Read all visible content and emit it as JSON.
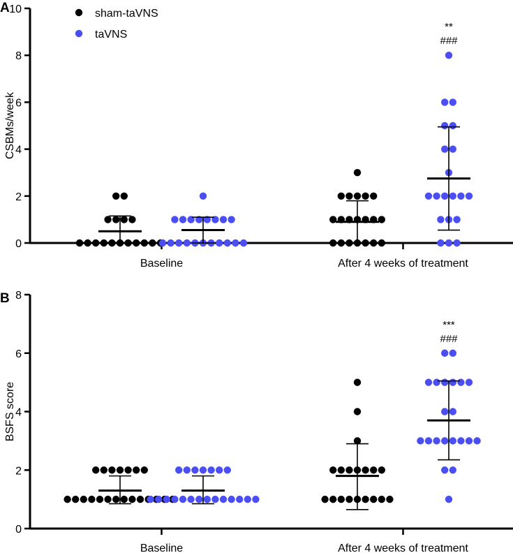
{
  "colors": {
    "sham": "#000000",
    "tavns": "#4b4ef2",
    "axis": "#000000"
  },
  "legend": [
    {
      "name": "sham-taVNS",
      "color": "#000000"
    },
    {
      "name": "taVNS",
      "color": "#4b4ef2"
    }
  ],
  "chart_data": [
    {
      "panel": "A",
      "type": "scatter",
      "ylabel": "CSBMs/week",
      "ylim": [
        0,
        10
      ],
      "yticks": [
        0,
        2,
        4,
        6,
        8,
        10
      ],
      "ytick_labels": [
        "0",
        "2",
        "4",
        "6",
        "8",
        "10"
      ],
      "categories": [
        "Baseline",
        "After 4 weeks of treatment"
      ],
      "series": [
        {
          "name": "sham-taVNS",
          "color": "#000000",
          "groups": [
            {
              "category": "Baseline",
              "mean": 0.5,
              "sd_low": 0.0,
              "sd_high": 1.15,
              "rows": [
                [
                  2,
                  2
                ],
                [
                  1,
                  4
                ],
                [
                  0,
                  11
                ]
              ]
            },
            {
              "category": "After 4 weeks of treatment",
              "mean": 0.9,
              "sd_low": 0.0,
              "sd_high": 1.8,
              "rows": [
                [
                  3,
                  1
                ],
                [
                  2,
                  5
                ],
                [
                  1,
                  7
                ],
                [
                  0,
                  7
                ]
              ]
            }
          ]
        },
        {
          "name": "taVNS",
          "color": "#4b4ef2",
          "groups": [
            {
              "category": "Baseline",
              "mean": 0.55,
              "sd_low": 0.0,
              "sd_high": 1.1,
              "rows": [
                [
                  2,
                  1
                ],
                [
                  1,
                  8
                ],
                [
                  0,
                  11
                ]
              ]
            },
            {
              "category": "After 4 weeks of treatment",
              "mean": 2.75,
              "sd_low": 0.55,
              "sd_high": 4.95,
              "rows": [
                [
                  8,
                  1
                ],
                [
                  6,
                  2
                ],
                [
                  5,
                  2
                ],
                [
                  4,
                  2
                ],
                [
                  3,
                  1
                ],
                [
                  2,
                  6
                ],
                [
                  1,
                  3
                ],
                [
                  0,
                  3
                ]
              ]
            }
          ]
        }
      ],
      "annotations": [
        {
          "category": "After 4 weeks of treatment",
          "series": "taVNS",
          "lines": [
            "**",
            "###"
          ]
        }
      ]
    },
    {
      "panel": "B",
      "type": "scatter",
      "ylabel": "BSFS score",
      "ylim": [
        0,
        8
      ],
      "yticks": [
        0,
        2,
        4,
        6,
        8
      ],
      "ytick_labels": [
        "0",
        "2",
        "4",
        "6",
        "8"
      ],
      "categories": [
        "Baseline",
        "After 4 weeks of treatment"
      ],
      "series": [
        {
          "name": "sham-taVNS",
          "color": "#000000",
          "groups": [
            {
              "category": "Baseline",
              "mean": 1.3,
              "sd_low": 0.85,
              "sd_high": 1.8,
              "rows": [
                [
                  2,
                  7
                ],
                [
                  1,
                  14
                ]
              ]
            },
            {
              "category": "After 4 weeks of treatment",
              "mean": 1.8,
              "sd_low": 0.65,
              "sd_high": 2.9,
              "rows": [
                [
                  5,
                  1
                ],
                [
                  4,
                  1
                ],
                [
                  3,
                  1
                ],
                [
                  2,
                  7
                ],
                [
                  1,
                  9
                ]
              ]
            }
          ]
        },
        {
          "name": "taVNS",
          "color": "#4b4ef2",
          "groups": [
            {
              "category": "Baseline",
              "mean": 1.3,
              "sd_low": 0.85,
              "sd_high": 1.8,
              "rows": [
                [
                  2,
                  7
                ],
                [
                  1,
                  14
                ]
              ]
            },
            {
              "category": "After 4 weeks of treatment",
              "mean": 3.7,
              "sd_low": 2.35,
              "sd_high": 5.05,
              "rows": [
                [
                  6,
                  2
                ],
                [
                  5,
                  6
                ],
                [
                  4,
                  2
                ],
                [
                  3,
                  8
                ],
                [
                  2,
                  2
                ],
                [
                  1,
                  1
                ]
              ]
            }
          ]
        }
      ],
      "annotations": [
        {
          "category": "After 4 weeks of treatment",
          "series": "taVNS",
          "lines": [
            "***",
            "###"
          ]
        }
      ]
    }
  ]
}
